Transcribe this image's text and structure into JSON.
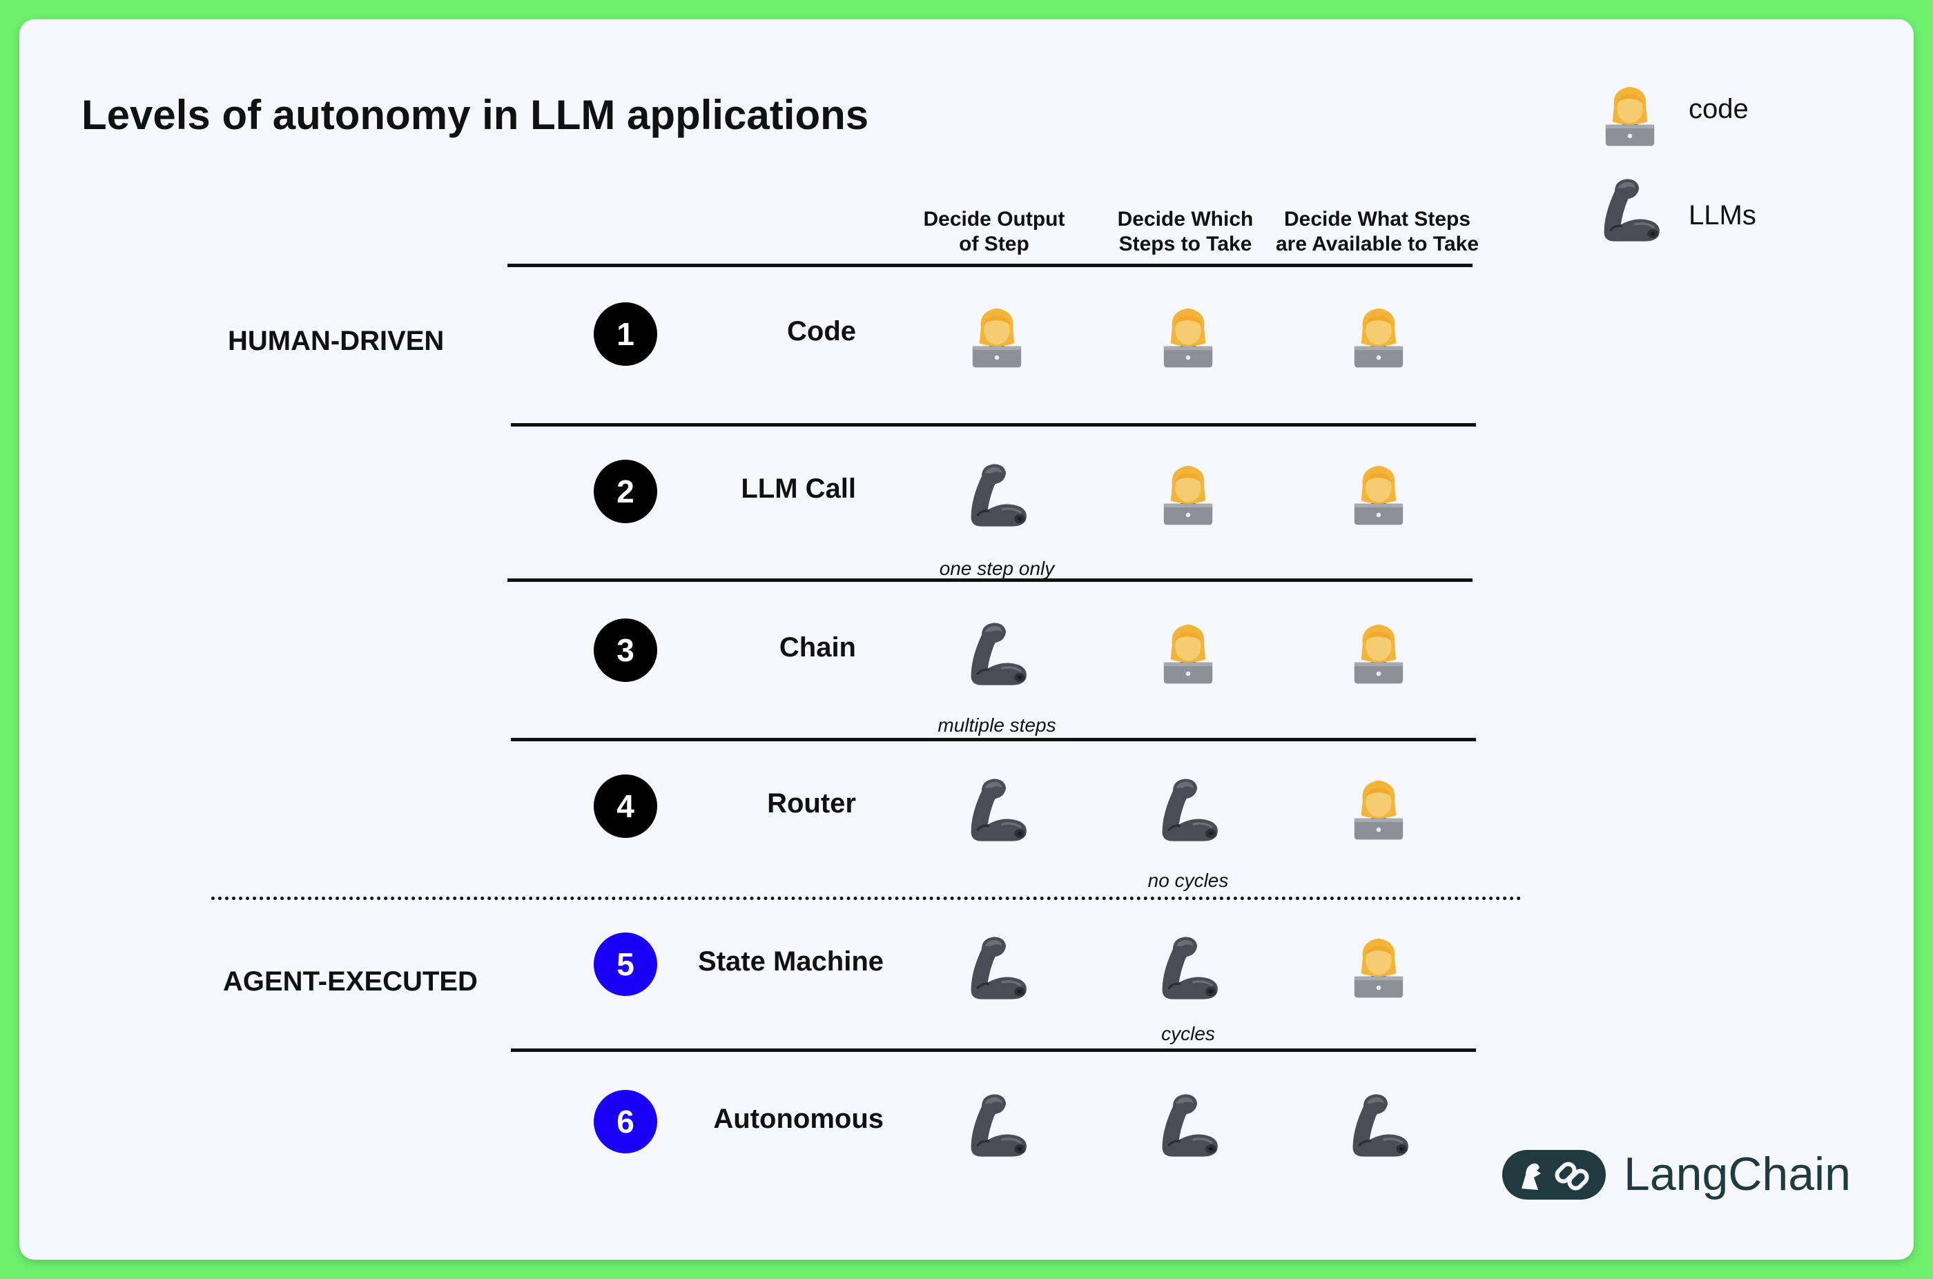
{
  "title": "Levels of autonomy in LLM applications",
  "legend": {
    "human_label": "code",
    "llm_label": "LLMs",
    "human_icon": "person-technologist-icon",
    "llm_icon": "flexed-biceps-icon"
  },
  "columns": [
    "Decide Output\nof Step",
    "Decide Which\nSteps to Take",
    "Decide What Steps\nare Available to Take"
  ],
  "groups": [
    "HUMAN-DRIVEN",
    "AGENT-EXECUTED"
  ],
  "rows": [
    {
      "num": "1",
      "label": "Code",
      "cells": [
        "human",
        "human",
        "human"
      ],
      "notes": [
        "",
        "",
        ""
      ]
    },
    {
      "num": "2",
      "label": "LLM Call",
      "cells": [
        "llm",
        "human",
        "human"
      ],
      "notes": [
        "one step only",
        "",
        ""
      ]
    },
    {
      "num": "3",
      "label": "Chain",
      "cells": [
        "llm",
        "human",
        "human"
      ],
      "notes": [
        "multiple steps",
        "",
        ""
      ]
    },
    {
      "num": "4",
      "label": "Router",
      "cells": [
        "llm",
        "llm",
        "human"
      ],
      "notes": [
        "",
        "no cycles",
        ""
      ]
    },
    {
      "num": "5",
      "label": "State Machine",
      "cells": [
        "llm",
        "llm",
        "human"
      ],
      "notes": [
        "",
        "cycles",
        ""
      ]
    },
    {
      "num": "6",
      "label": "Autonomous",
      "cells": [
        "llm",
        "llm",
        "llm"
      ],
      "notes": [
        "",
        "",
        ""
      ]
    }
  ],
  "brand": {
    "name": "LangChain",
    "icon": "parrot-chain-logo-icon"
  },
  "colors": {
    "background": "#6ef06e",
    "card": "#f7f8fd",
    "human_step_badge": "#000000",
    "agent_step_badge": "#1a00f5",
    "brand": "#1f3b3f"
  }
}
